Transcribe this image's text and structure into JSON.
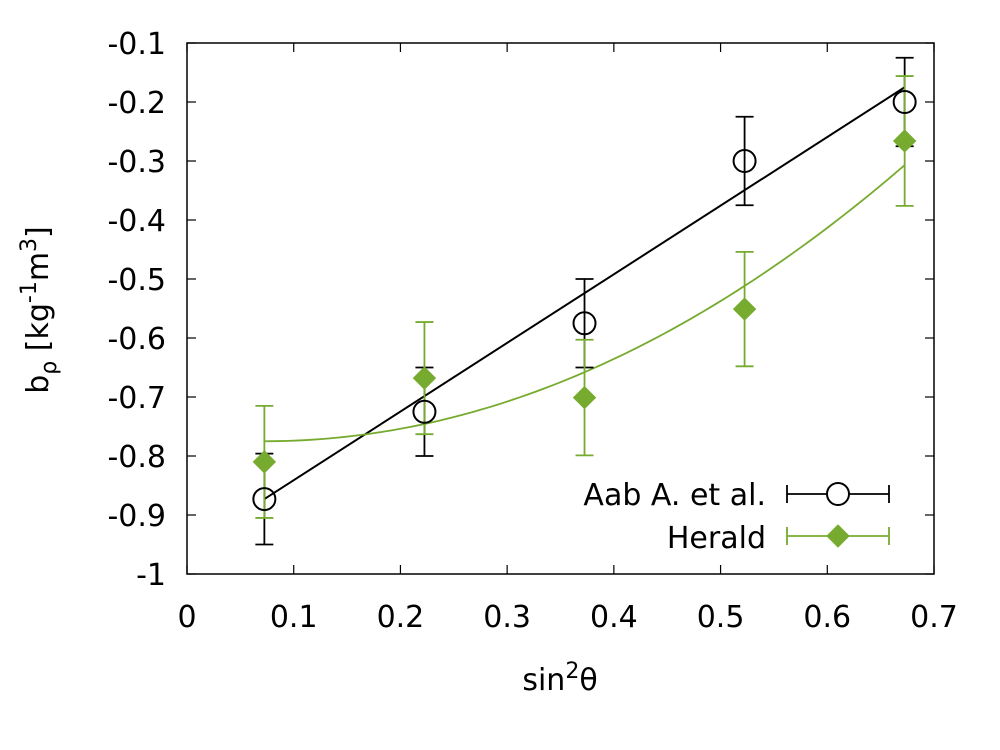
{
  "chart_data": {
    "type": "scatter",
    "xlabel": {
      "base": "sin",
      "sup": "2",
      "tail": "θ"
    },
    "ylabel": {
      "base": "b",
      "sub": "ρ",
      "unit_a": " [kg",
      "sup_a": "-1",
      "unit_b": "m",
      "sup_b": "3",
      "unit_c": "]"
    },
    "xlim": [
      0,
      0.7
    ],
    "ylim": [
      -1,
      -0.1
    ],
    "xticks": [
      0,
      0.1,
      0.2,
      0.3,
      0.4,
      0.5,
      0.6,
      0.7
    ],
    "xtick_labels": [
      "0",
      "0.1",
      "0.2",
      "0.3",
      "0.4",
      "0.5",
      "0.6",
      "0.7"
    ],
    "yticks": [
      -1,
      -0.9,
      -0.8,
      -0.7,
      -0.6,
      -0.5,
      -0.4,
      -0.3,
      -0.2,
      -0.1
    ],
    "ytick_labels": [
      "-1",
      "-0.9",
      "-0.8",
      "-0.7",
      "-0.6",
      "-0.5",
      "-0.4",
      "-0.3",
      "-0.2",
      "-0.1"
    ],
    "grid": false,
    "legend_position": "bottom-right",
    "series": [
      {
        "name": "Aab A. et al.",
        "marker": "open-circle",
        "color": "#000000",
        "x": [
          0.0725,
          0.2225,
          0.3725,
          0.5225,
          0.6725
        ],
        "y": [
          -0.873,
          -0.725,
          -0.575,
          -0.3,
          -0.2
        ],
        "yerr": [
          0.077,
          0.075,
          0.075,
          0.075,
          0.075
        ],
        "fit": {
          "kind": "linear",
          "from": [
            0.0725,
            -0.873
          ],
          "to": [
            0.6725,
            -0.175
          ]
        }
      },
      {
        "name": "Herald",
        "marker": "filled-diamond",
        "color": "#77ab2f",
        "x": [
          0.0725,
          0.2225,
          0.3725,
          0.5225,
          0.6725
        ],
        "y": [
          -0.81,
          -0.668,
          -0.701,
          -0.551,
          -0.266
        ],
        "yerr": [
          0.095,
          0.095,
          0.098,
          0.097,
          0.11
        ],
        "fit": {
          "kind": "quadratic",
          "vertex_x": 0.0725,
          "vertex_y": -0.775,
          "coef": 1.3
        }
      }
    ]
  }
}
